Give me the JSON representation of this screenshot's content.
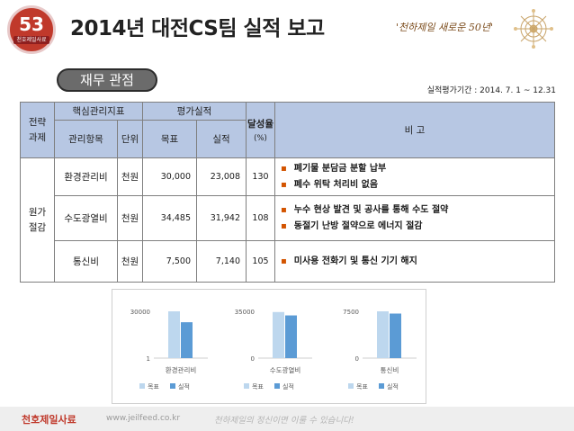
{
  "header": {
    "logo_number": "53",
    "logo_text": "천호제일사료",
    "title": "2014년 대전CS팀 실적 보고",
    "slogan": "'천하제일 새로운 50년'"
  },
  "section_badge": "재무 관점",
  "period": "실적평가기간 : 2014. 7. 1 ~ 12.31",
  "table": {
    "headers": {
      "strategy_task": "전략\n과제",
      "core_kpi": "핵심관리지표",
      "evaluation": "평가실적",
      "item": "관리항목",
      "unit": "단위",
      "target": "목표",
      "actual": "실적",
      "rate": "달성율",
      "rate_unit": "(%)",
      "remarks": "비 고"
    },
    "group": "원가\n절감",
    "rows": [
      {
        "item": "환경관리비",
        "unit": "천원",
        "target": "30,000",
        "actual": "23,008",
        "rate": "130",
        "notes": [
          "폐기물 분담금 분할 납부",
          "폐수 위탁 처리비 없음"
        ]
      },
      {
        "item": "수도광열비",
        "unit": "천원",
        "target": "34,485",
        "actual": "31,942",
        "rate": "108",
        "notes": [
          "누수 현상 발견 및 공사를 통해 수도 절약",
          "동절기 난방 절약으로 에너지 절감"
        ]
      },
      {
        "item": "통신비",
        "unit": "천원",
        "target": "7,500",
        "actual": "7,140",
        "rate": "105",
        "notes": [
          "미사용 전화기 및 통신 기기 해지"
        ]
      }
    ]
  },
  "chart_data": [
    {
      "type": "bar",
      "categories": [
        "환경관리비"
      ],
      "series": [
        {
          "name": "목표",
          "values": [
            30000
          ],
          "color": "#bdd7ee"
        },
        {
          "name": "실적",
          "values": [
            23008
          ],
          "color": "#5b9bd5"
        }
      ],
      "ylim": [
        1,
        30000
      ],
      "yticks": [
        "30000",
        "1"
      ],
      "legend": "bottom"
    },
    {
      "type": "bar",
      "categories": [
        "수도광열비"
      ],
      "series": [
        {
          "name": "목표",
          "values": [
            34485
          ],
          "color": "#bdd7ee"
        },
        {
          "name": "실적",
          "values": [
            31942
          ],
          "color": "#5b9bd5"
        }
      ],
      "ylim": [
        0,
        35000
      ],
      "yticks": [
        "35000",
        "0"
      ],
      "legend": "bottom"
    },
    {
      "type": "bar",
      "categories": [
        "통신비"
      ],
      "series": [
        {
          "name": "목표",
          "values": [
            7500
          ],
          "color": "#bdd7ee"
        },
        {
          "name": "실적",
          "values": [
            7140
          ],
          "color": "#5b9bd5"
        }
      ],
      "ylim": [
        0,
        7500
      ],
      "yticks": [
        "7500",
        "0"
      ],
      "legend": "bottom"
    }
  ],
  "footer": {
    "brand": "천호제일사료",
    "url": "www.jeilfeed.co.kr",
    "motto": "천하제일의 정신이면 이룰 수 있습니다!"
  },
  "colors": {
    "header_fill": "#b7c7e3",
    "bullet": "#d35400",
    "brand": "#c0392b"
  },
  "icons": {
    "bullet": "bullet-icon",
    "flower": "flower-decoration-icon"
  }
}
